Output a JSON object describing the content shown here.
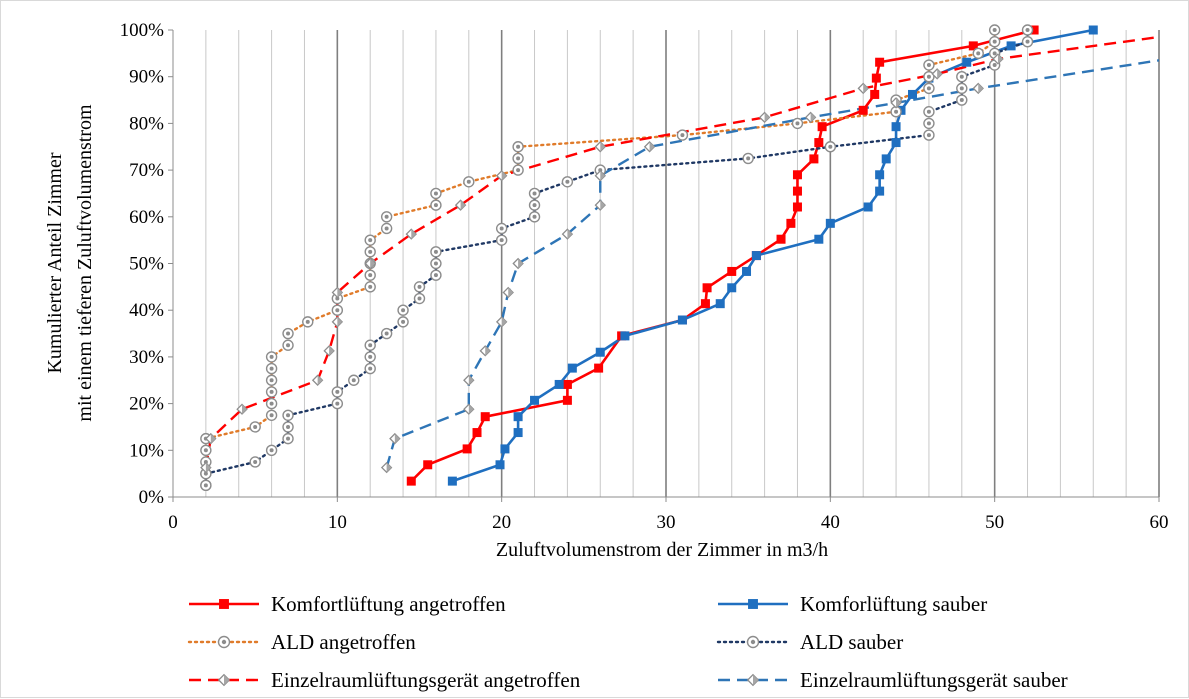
{
  "chart_data": {
    "type": "line",
    "xlabel": "Zuluftvolumenstrom der Zimmer in m3/h",
    "ylabel_lines": [
      "Kumulierter Anteil Zimmer",
      "mit einem tieferen Zuluftvolumenstrom"
    ],
    "xlim": [
      0,
      60
    ],
    "ylim": [
      0,
      100
    ],
    "x_ticks": [
      "0",
      "10",
      "20",
      "30",
      "40",
      "50",
      "60"
    ],
    "y_ticks": [
      "0%",
      "10%",
      "20%",
      "30%",
      "40%",
      "50%",
      "60%",
      "70%",
      "80%",
      "90%",
      "100%"
    ],
    "grid": "vertical gridlines every 2 units, darker every 10; horizontal baseline only",
    "legend_position": "bottom",
    "series": [
      {
        "name": "Komfortlüftung angetroffen",
        "color": "#ff0000",
        "dash": "solid",
        "marker": "square",
        "points": [
          [
            14.5,
            3.4
          ],
          [
            15.5,
            6.9
          ],
          [
            17.9,
            10.3
          ],
          [
            18.5,
            13.8
          ],
          [
            19,
            17.2
          ],
          [
            24,
            20.7
          ],
          [
            24,
            24.1
          ],
          [
            25.9,
            27.6
          ],
          [
            27.3,
            34.5
          ],
          [
            31,
            37.9
          ],
          [
            32.4,
            41.4
          ],
          [
            32.5,
            44.8
          ],
          [
            34,
            48.3
          ],
          [
            35.5,
            51.7
          ],
          [
            37,
            55.2
          ],
          [
            37.6,
            58.6
          ],
          [
            38,
            62.1
          ],
          [
            38,
            65.5
          ],
          [
            38,
            69
          ],
          [
            39,
            72.4
          ],
          [
            39.3,
            75.9
          ],
          [
            39.5,
            79.3
          ],
          [
            42,
            82.8
          ],
          [
            42.7,
            86.2
          ],
          [
            42.8,
            89.7
          ],
          [
            43,
            93.1
          ],
          [
            48.7,
            96.6
          ],
          [
            52.4,
            100
          ]
        ]
      },
      {
        "name": "Komforlüftung sauber",
        "color": "#1f6fc0",
        "dash": "solid",
        "marker": "square",
        "points": [
          [
            17,
            3.4
          ],
          [
            19.9,
            6.9
          ],
          [
            20.2,
            10.3
          ],
          [
            21,
            13.8
          ],
          [
            21,
            17.2
          ],
          [
            22,
            20.7
          ],
          [
            23.5,
            24.1
          ],
          [
            24.3,
            27.6
          ],
          [
            26,
            31
          ],
          [
            27.5,
            34.5
          ],
          [
            31,
            37.9
          ],
          [
            33.3,
            41.4
          ],
          [
            34,
            44.8
          ],
          [
            34.9,
            48.3
          ],
          [
            35.5,
            51.7
          ],
          [
            39.3,
            55.2
          ],
          [
            40,
            58.6
          ],
          [
            42.3,
            62.1
          ],
          [
            43,
            65.5
          ],
          [
            43,
            69
          ],
          [
            43.4,
            72.4
          ],
          [
            44,
            75.9
          ],
          [
            44,
            79.3
          ],
          [
            44.3,
            82.8
          ],
          [
            45,
            86.2
          ],
          [
            46,
            89.7
          ],
          [
            48.3,
            93.1
          ],
          [
            51,
            96.6
          ],
          [
            56,
            100
          ]
        ]
      },
      {
        "name": "ALD angetroffen",
        "color": "#e07b2a",
        "dash": "dotted",
        "marker": "circle",
        "points": [
          [
            2,
            2.5
          ],
          [
            2,
            5
          ],
          [
            2,
            7.5
          ],
          [
            2,
            10
          ],
          [
            2,
            12.5
          ],
          [
            5,
            15
          ],
          [
            6,
            17.5
          ],
          [
            6,
            20
          ],
          [
            6,
            22.5
          ],
          [
            6,
            25
          ],
          [
            6,
            27.5
          ],
          [
            6,
            30
          ],
          [
            7,
            32.5
          ],
          [
            7,
            35
          ],
          [
            8.2,
            37.5
          ],
          [
            10,
            40
          ],
          [
            10,
            42.5
          ],
          [
            12,
            45
          ],
          [
            12,
            47.5
          ],
          [
            12,
            50
          ],
          [
            12,
            52.5
          ],
          [
            12,
            55
          ],
          [
            13,
            57.5
          ],
          [
            13,
            60
          ],
          [
            16,
            62.5
          ],
          [
            16,
            65
          ],
          [
            18,
            67.5
          ],
          [
            21,
            70
          ],
          [
            21,
            72.5
          ],
          [
            21,
            75
          ],
          [
            31,
            77.5
          ],
          [
            38,
            80
          ],
          [
            44,
            82.5
          ],
          [
            44,
            85
          ],
          [
            46,
            87.5
          ],
          [
            46,
            90
          ],
          [
            46,
            92.5
          ],
          [
            49,
            95
          ],
          [
            50,
            97.5
          ],
          [
            50,
            100
          ]
        ]
      },
      {
        "name": "ALD sauber",
        "color": "#1f3864",
        "dash": "dotted",
        "marker": "circle",
        "points": [
          [
            2,
            2.5
          ],
          [
            2,
            5
          ],
          [
            5,
            7.5
          ],
          [
            6,
            10
          ],
          [
            7,
            12.5
          ],
          [
            7,
            15
          ],
          [
            7,
            17.5
          ],
          [
            10,
            20
          ],
          [
            10,
            22.5
          ],
          [
            11,
            25
          ],
          [
            12,
            27.5
          ],
          [
            12,
            30
          ],
          [
            12,
            32.5
          ],
          [
            13,
            35
          ],
          [
            14,
            37.5
          ],
          [
            14,
            40
          ],
          [
            15,
            42.5
          ],
          [
            15,
            45
          ],
          [
            16,
            47.5
          ],
          [
            16,
            50
          ],
          [
            16,
            52.5
          ],
          [
            20,
            55
          ],
          [
            20,
            57.5
          ],
          [
            22,
            60
          ],
          [
            22,
            62.5
          ],
          [
            22,
            65
          ],
          [
            24,
            67.5
          ],
          [
            26,
            70
          ],
          [
            35,
            72.5
          ],
          [
            40,
            75
          ],
          [
            46,
            77.5
          ],
          [
            46,
            80
          ],
          [
            46,
            82.5
          ],
          [
            48,
            85
          ],
          [
            48,
            87.5
          ],
          [
            48,
            90
          ],
          [
            50,
            92.5
          ],
          [
            50,
            95
          ],
          [
            52,
            97.5
          ],
          [
            52,
            100
          ]
        ]
      },
      {
        "name": "Einzelraumlüftungsgerät angetroffen",
        "color": "#ff0000",
        "dash": "dashed",
        "marker": "diamond",
        "points": [
          [
            2,
            6.3
          ],
          [
            2.3,
            12.5
          ],
          [
            4.2,
            18.8
          ],
          [
            8.8,
            25
          ],
          [
            9.5,
            31.3
          ],
          [
            10,
            37.5
          ],
          [
            10,
            43.8
          ],
          [
            12,
            50
          ],
          [
            14.5,
            56.3
          ],
          [
            17.5,
            62.5
          ],
          [
            20,
            68.8
          ],
          [
            26,
            75
          ],
          [
            36,
            81.3
          ],
          [
            42,
            87.5
          ],
          [
            46.5,
            90.6
          ],
          [
            50.2,
            93.8
          ],
          [
            60,
            98.5
          ]
        ]
      },
      {
        "name": "Einzelraumlüftungsgerät sauber",
        "color": "#2e75b6",
        "dash": "dashed",
        "marker": "diamond",
        "points": [
          [
            13,
            6.3
          ],
          [
            13.5,
            12.5
          ],
          [
            18,
            18.8
          ],
          [
            18,
            25
          ],
          [
            19,
            31.3
          ],
          [
            20,
            37.5
          ],
          [
            20.4,
            43.8
          ],
          [
            21,
            50
          ],
          [
            24,
            56.3
          ],
          [
            26,
            62.5
          ],
          [
            26,
            68.8
          ],
          [
            29,
            75
          ],
          [
            38.8,
            81.3
          ],
          [
            44,
            84.4
          ],
          [
            49,
            87.5
          ],
          [
            60,
            93.5
          ]
        ]
      }
    ]
  }
}
